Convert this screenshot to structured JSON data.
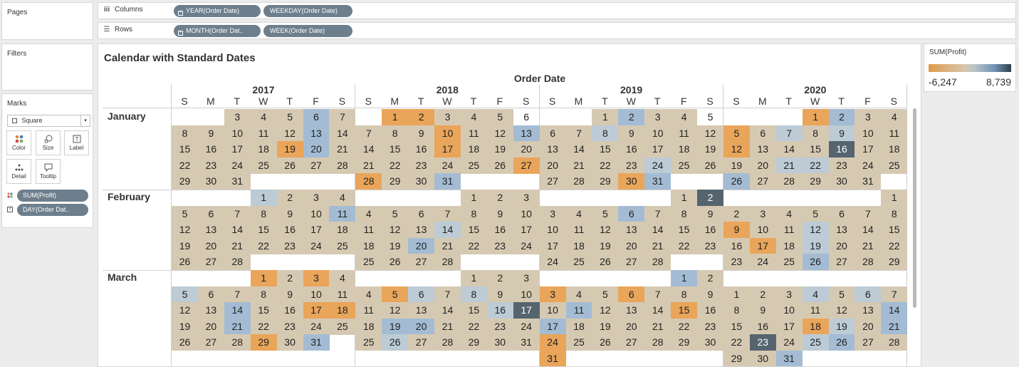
{
  "shelves": {
    "pages_label": "Pages",
    "columns_label": "Columns",
    "rows_label": "Rows",
    "filters_label": "Filters",
    "columns_pills": [
      "YEAR(Order Date)",
      "WEEKDAY(Order Date)"
    ],
    "rows_pills": [
      "MONTH(Order Dat..",
      "WEEK(Order Date)"
    ]
  },
  "marks": {
    "title": "Marks",
    "type": "Square",
    "buttons": [
      "Color",
      "Size",
      "Label",
      "Detail",
      "Tooltip"
    ],
    "fields": [
      "SUM(Profit)",
      "DAY(Order Dat.."
    ]
  },
  "legend": {
    "title": "SUM(Profit)",
    "min": "-6,247",
    "max": "8,739",
    "colors": {
      "low": "#e09a49",
      "mid": "#d8c7ad",
      "high": "#6f93b5",
      "max": "#2f3d4a"
    }
  },
  "viz": {
    "title": "Calendar with Standard Dates",
    "header": "Order Date",
    "years": [
      "2017",
      "2018",
      "2019",
      "2020"
    ],
    "weekdays": [
      "S",
      "M",
      "T",
      "W",
      "T",
      "F",
      "S"
    ],
    "months": [
      "January",
      "February",
      "March"
    ],
    "weeks": [
      [
        "",
        "",
        "3",
        "4",
        "5",
        "6",
        "7",
        "",
        "1",
        "2",
        "3",
        "4",
        "5",
        "6",
        "",
        "",
        "1",
        "2",
        "3",
        "4",
        "5",
        "",
        "",
        "",
        "1",
        "2",
        "3",
        "4"
      ],
      [
        "8",
        "9",
        "10",
        "11",
        "12",
        "13",
        "14",
        "7",
        "8",
        "9",
        "10",
        "11",
        "12",
        "13",
        "6",
        "7",
        "8",
        "9",
        "10",
        "11",
        "12",
        "5",
        "6",
        "7",
        "8",
        "9",
        "10",
        "11"
      ],
      [
        "15",
        "16",
        "17",
        "18",
        "19",
        "20",
        "21",
        "14",
        "15",
        "16",
        "17",
        "18",
        "19",
        "20",
        "13",
        "14",
        "15",
        "16",
        "17",
        "18",
        "19",
        "12",
        "13",
        "14",
        "15",
        "16",
        "17",
        "18"
      ],
      [
        "22",
        "23",
        "24",
        "25",
        "26",
        "27",
        "28",
        "21",
        "22",
        "23",
        "24",
        "25",
        "26",
        "27",
        "20",
        "21",
        "22",
        "23",
        "24",
        "25",
        "26",
        "19",
        "20",
        "21",
        "22",
        "23",
        "24",
        "25"
      ],
      [
        "29",
        "30",
        "31",
        "",
        "",
        "",
        "",
        "28",
        "29",
        "30",
        "31",
        "",
        "",
        "",
        "27",
        "28",
        "29",
        "30",
        "31",
        "",
        "",
        "26",
        "27",
        "28",
        "29",
        "30",
        "31",
        ""
      ],
      [
        "",
        "",
        "",
        "1",
        "2",
        "3",
        "4",
        "",
        "",
        "",
        "",
        "1",
        "2",
        "3",
        "",
        "",
        "",
        "",
        "",
        "1",
        "2",
        "",
        "",
        "",
        "",
        "",
        "",
        "1"
      ],
      [
        "5",
        "6",
        "7",
        "8",
        "9",
        "10",
        "11",
        "4",
        "5",
        "6",
        "7",
        "8",
        "9",
        "10",
        "3",
        "4",
        "5",
        "6",
        "7",
        "8",
        "9",
        "2",
        "3",
        "4",
        "5",
        "6",
        "7",
        "8"
      ],
      [
        "12",
        "13",
        "14",
        "15",
        "16",
        "17",
        "18",
        "11",
        "12",
        "13",
        "14",
        "15",
        "16",
        "17",
        "10",
        "11",
        "12",
        "13",
        "14",
        "15",
        "16",
        "9",
        "10",
        "11",
        "12",
        "13",
        "14",
        "15"
      ],
      [
        "19",
        "20",
        "21",
        "22",
        "23",
        "24",
        "25",
        "18",
        "19",
        "20",
        "21",
        "22",
        "23",
        "24",
        "17",
        "18",
        "19",
        "20",
        "21",
        "22",
        "23",
        "16",
        "17",
        "18",
        "19",
        "20",
        "21",
        "22"
      ],
      [
        "26",
        "27",
        "28",
        "",
        "",
        "",
        "",
        "25",
        "26",
        "27",
        "28",
        "",
        "",
        "",
        "24",
        "25",
        "26",
        "27",
        "28",
        "",
        "",
        "23",
        "24",
        "25",
        "26",
        "27",
        "28",
        "29"
      ],
      [
        "",
        "",
        "",
        "1",
        "2",
        "3",
        "4",
        "",
        "",
        "",
        "",
        "1",
        "2",
        "3",
        "",
        "",
        "",
        "",
        "",
        "1",
        "2",
        "",
        "",
        "",
        "",
        "",
        "",
        ""
      ],
      [
        "5",
        "6",
        "7",
        "8",
        "9",
        "10",
        "11",
        "4",
        "5",
        "6",
        "7",
        "8",
        "9",
        "10",
        "3",
        "4",
        "5",
        "6",
        "7",
        "8",
        "9",
        "1",
        "2",
        "3",
        "4",
        "5",
        "6",
        "7"
      ],
      [
        "12",
        "13",
        "14",
        "15",
        "16",
        "17",
        "18",
        "11",
        "12",
        "13",
        "14",
        "15",
        "16",
        "17",
        "10",
        "11",
        "12",
        "13",
        "14",
        "15",
        "16",
        "8",
        "9",
        "10",
        "11",
        "12",
        "13",
        "14"
      ],
      [
        "19",
        "20",
        "21",
        "22",
        "23",
        "24",
        "25",
        "18",
        "19",
        "20",
        "21",
        "22",
        "23",
        "24",
        "17",
        "18",
        "19",
        "20",
        "21",
        "22",
        "23",
        "15",
        "16",
        "17",
        "18",
        "19",
        "20",
        "21"
      ],
      [
        "26",
        "27",
        "28",
        "29",
        "30",
        "31",
        "",
        "25",
        "26",
        "27",
        "28",
        "29",
        "30",
        "31",
        "24",
        "25",
        "26",
        "27",
        "28",
        "29",
        "30",
        "22",
        "23",
        "24",
        "25",
        "26",
        "27",
        "28"
      ],
      [
        "",
        "",
        "",
        "",
        "",
        "",
        "",
        "",
        "",
        "",
        "",
        "",
        "",
        "",
        "31",
        "",
        "",
        "",
        "",
        "",
        "",
        "29",
        "30",
        "31",
        "",
        "",
        "",
        ""
      ]
    ],
    "shades": [
      "..TTTBT.OOTTT..TTBTT...OOBT",
      "TTTTTBTTTTOTTBTTLTTTTOTLTLTT",
      "TTTTOBTTTTOTTTTTTTTTTOTTTDTT",
      "TTTTTTTTTTTTTOTTTTLTTTTLLTTT",
      "TTT....OTTB...TTTOB..BTTTTT.",
      "...LTTT....TTT.....TD......T",
      "TTTTTTBTTTTTTTTTTBTTTTTTTTTT",
      "TTTTTTTTTTLTTTTTTTTTTOTTLTTT",
      "TTTTTTTTTBTTTTTTTTTTTTOTLTTT",
      "TTT....TTTT...TTTTT..TTTBTTT",
      "...OTOT....TTT.....BT.......",
      "LTTTTTTTOLTLTTOTTOTTTTTTLTLT",
      "TTBTTOOTTTTTLDTBTTTOTTTTTTTB",
      "TTBTTTTTBBTTTTBTTTTTTTTTOLTB",
      "TTTOTB.TLTTTTTOTTTTTTTDTLBTT",
      "..............O......TTB...."
    ]
  }
}
